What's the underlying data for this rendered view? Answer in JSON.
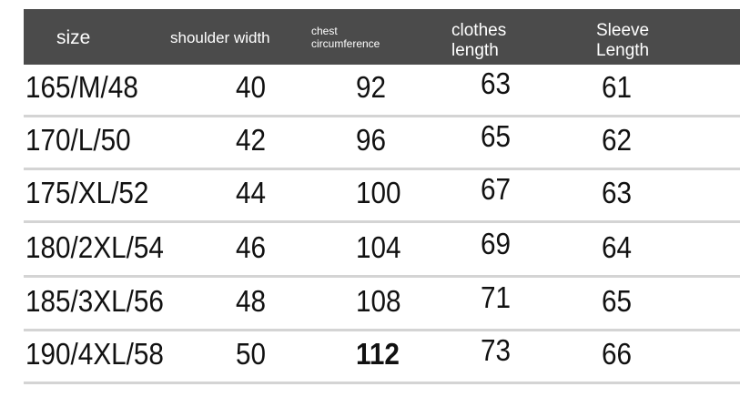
{
  "header": {
    "size": "size",
    "shoulder_width": "shoulder width",
    "chest_circumference": [
      "chest",
      "circumference"
    ],
    "clothes_length": [
      "clothes",
      "length"
    ],
    "sleeve_length": [
      "Sleeve",
      "Length"
    ]
  },
  "header_color": "#4b4b4b",
  "rows": [
    [
      "165/M/48",
      "40",
      "92",
      "63",
      "61"
    ],
    [
      "170/L/50",
      "42",
      "96",
      "65",
      "62"
    ],
    [
      "175/XL/52",
      "44",
      "100",
      "67",
      "63"
    ],
    [
      "180/2XL/54",
      "46",
      "104",
      "69",
      "64"
    ],
    [
      "185/3XL/56",
      "48",
      "108",
      "71",
      "65"
    ],
    [
      "190/4XL/58",
      "50",
      "112",
      "73",
      "66"
    ]
  ]
}
